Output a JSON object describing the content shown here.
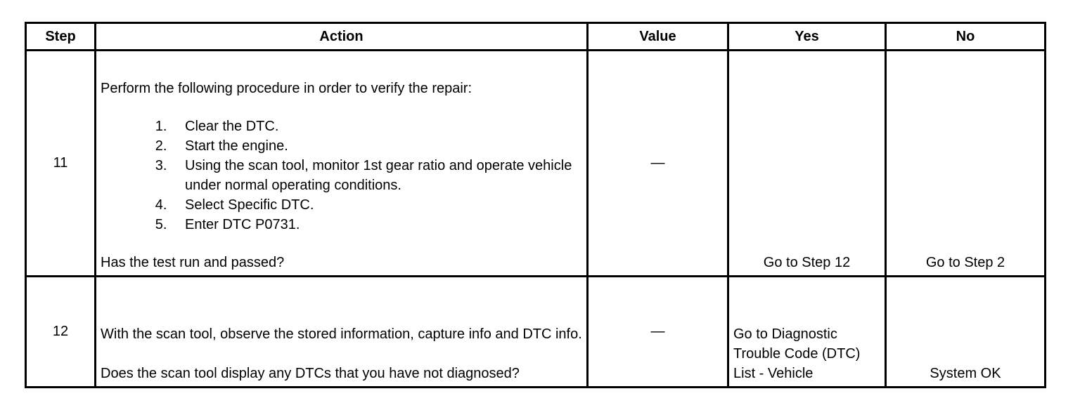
{
  "headers": {
    "step": "Step",
    "action": "Action",
    "value": "Value",
    "yes": "Yes",
    "no": "No"
  },
  "rows": [
    {
      "step": "11",
      "intro": "Perform the following procedure in order to verify the repair:",
      "items": [
        "Clear the DTC.",
        "Start the engine.",
        "Using the scan tool, monitor 1st gear ratio and operate vehicle under normal operating conditions.",
        "Select Specific DTC.",
        "Enter DTC P0731."
      ],
      "question": "Has the test run and passed?",
      "value": "—",
      "yes": "Go to Step 12",
      "no": "Go to Step 2"
    },
    {
      "step": "12",
      "intro": "With the scan tool, observe the stored information, capture info and DTC info.",
      "question": "Does the scan tool display any DTCs that you have not diagnosed?",
      "value": "—",
      "yes": "Go to Diagnostic Trouble Code (DTC) List - Vehicle",
      "no": "System OK"
    }
  ]
}
